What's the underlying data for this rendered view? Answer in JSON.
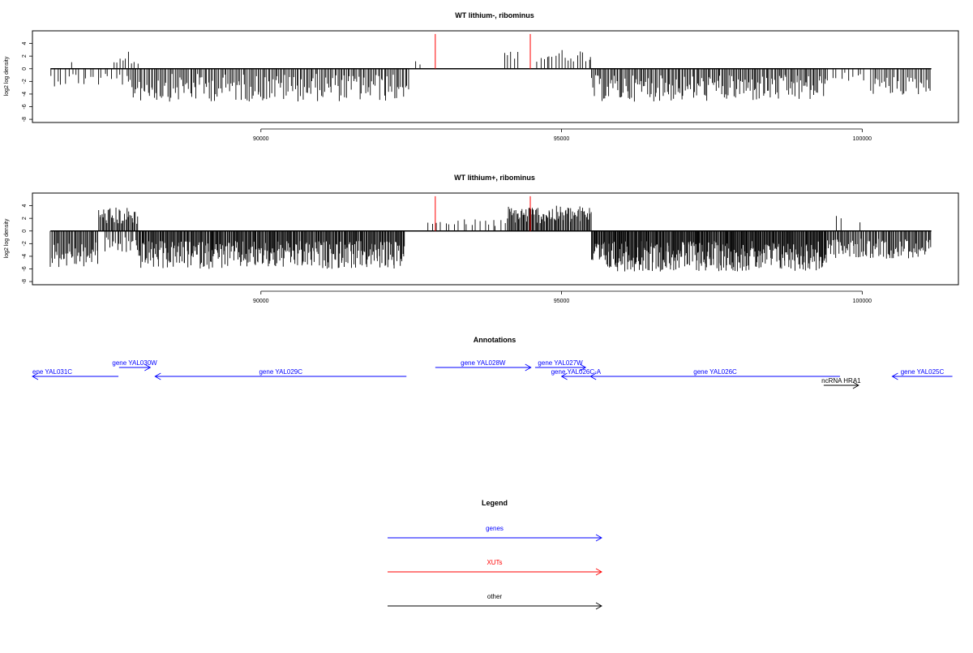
{
  "chart_data": [
    {
      "type": "bar",
      "title": "WT lithium-, ribominus",
      "ylabel": "log2 log density",
      "xlim": [
        86200,
        101600
      ],
      "ylim": [
        -8.5,
        6
      ],
      "x_ticks": [
        90000,
        95000,
        100000
      ],
      "y_ticks": [
        -8,
        -6,
        -4,
        -2,
        0,
        2,
        4
      ],
      "segments": [
        {
          "start": 86500,
          "end": 87800,
          "sign": -1,
          "mean": -1.6,
          "spread": 1.2,
          "step": 60
        },
        {
          "start": 86850,
          "end": 86900,
          "sign": 1,
          "mean": 0.9,
          "spread": 0.2,
          "step": 60
        },
        {
          "start": 87550,
          "end": 87950,
          "sign": 1,
          "mean": 1.8,
          "spread": 1.0,
          "step": 50
        },
        {
          "start": 87800,
          "end": 92450,
          "sign": -1,
          "mean": -3.0,
          "spread": 2.2,
          "step": 25
        },
        {
          "start": 92550,
          "end": 92650,
          "sign": 1,
          "mean": 0.9,
          "spread": 0.3,
          "step": 70
        },
        {
          "start": 94050,
          "end": 94300,
          "sign": 1,
          "mean": 2.2,
          "spread": 0.7,
          "step": 60
        },
        {
          "start": 94600,
          "end": 95500,
          "sign": 1,
          "mean": 2.1,
          "spread": 1.0,
          "step": 50
        },
        {
          "start": 95500,
          "end": 99400,
          "sign": -1,
          "mean": -3.1,
          "spread": 2.1,
          "step": 22
        },
        {
          "start": 99400,
          "end": 99700,
          "sign": -1,
          "mean": -1.3,
          "spread": 0.6,
          "step": 90
        },
        {
          "start": 99700,
          "end": 100100,
          "sign": -1,
          "mean": -1.4,
          "spread": 0.8,
          "step": 70
        },
        {
          "start": 100150,
          "end": 101150,
          "sign": -1,
          "mean": -2.7,
          "spread": 1.5,
          "step": 30
        }
      ],
      "xut_markers": [
        {
          "x": 92900,
          "value": 5.5
        },
        {
          "x": 94480,
          "value": 5.5
        }
      ]
    },
    {
      "type": "bar",
      "title": "WT lithium+, ribominus",
      "ylabel": "log2 log density",
      "xlim": [
        86200,
        101600
      ],
      "ylim": [
        -8.5,
        6
      ],
      "x_ticks": [
        90000,
        95000,
        100000
      ],
      "y_ticks": [
        -8,
        -6,
        -4,
        -2,
        0,
        2,
        4
      ],
      "segments": [
        {
          "start": 86500,
          "end": 87300,
          "sign": -1,
          "mean": -3.8,
          "spread": 2.0,
          "step": 18
        },
        {
          "start": 87300,
          "end": 87950,
          "sign": 1,
          "mean": 2.4,
          "spread": 1.4,
          "step": 18
        },
        {
          "start": 87400,
          "end": 87950,
          "sign": -1,
          "mean": -2.2,
          "spread": 1.4,
          "step": 30
        },
        {
          "start": 87950,
          "end": 92400,
          "sign": -1,
          "mean": -3.8,
          "spread": 2.2,
          "step": 14
        },
        {
          "start": 92800,
          "end": 94100,
          "sign": 1,
          "mean": 1.3,
          "spread": 0.6,
          "step": 70
        },
        {
          "start": 94100,
          "end": 95500,
          "sign": 1,
          "mean": 2.6,
          "spread": 1.4,
          "step": 16
        },
        {
          "start": 95500,
          "end": 99400,
          "sign": -1,
          "mean": -4.0,
          "spread": 2.4,
          "step": 12
        },
        {
          "start": 99400,
          "end": 101150,
          "sign": -1,
          "mean": -2.8,
          "spread": 1.6,
          "step": 18
        },
        {
          "start": 99580,
          "end": 99650,
          "sign": 1,
          "mean": 2.5,
          "spread": 0.5,
          "step": 50
        },
        {
          "start": 99960,
          "end": 100000,
          "sign": 1,
          "mean": 1.4,
          "spread": 0.2,
          "step": 50
        }
      ],
      "xut_markers": [
        {
          "x": 92900,
          "value": 5.5
        },
        {
          "x": 94480,
          "value": 5.5
        }
      ]
    }
  ],
  "annotations": {
    "title": "Annotations",
    "features": [
      {
        "label": "ene YAL031C",
        "start": 86200,
        "end": 87630,
        "strand": "-",
        "row": 1,
        "kind": "gene"
      },
      {
        "label": "gene YAL030W",
        "start": 87640,
        "end": 88160,
        "strand": "+",
        "row": 0,
        "kind": "gene"
      },
      {
        "label": "gene YAL029C",
        "start": 88240,
        "end": 92420,
        "strand": "-",
        "row": 1,
        "kind": "gene"
      },
      {
        "label": "gene YAL028W",
        "start": 92900,
        "end": 94490,
        "strand": "+",
        "row": 0,
        "kind": "gene"
      },
      {
        "label": "gene YAL027W",
        "start": 94560,
        "end": 95400,
        "strand": "+",
        "row": 0,
        "kind": "gene"
      },
      {
        "label": "gene YAL026C-A",
        "start": 95000,
        "end": 95480,
        "strand": "-",
        "row": 1,
        "kind": "gene"
      },
      {
        "label": "gene YAL026C",
        "start": 95480,
        "end": 99630,
        "strand": "-",
        "row": 1,
        "kind": "gene"
      },
      {
        "label": "ncRNA HRA1",
        "start": 99360,
        "end": 99940,
        "strand": "+",
        "row": 2,
        "kind": "other"
      },
      {
        "label": "gene YAL025C",
        "start": 100500,
        "end": 101500,
        "strand": "-",
        "row": 1,
        "kind": "gene"
      }
    ]
  },
  "legend": {
    "title": "Legend",
    "items": [
      {
        "label": "genes",
        "color": "#0000ff"
      },
      {
        "label": "XUTs",
        "color": "#ff0000"
      },
      {
        "label": "other",
        "color": "#000000"
      }
    ]
  },
  "colors": {
    "gene": "#0000ff",
    "xut": "#ff0000",
    "other": "#000000",
    "bars": "#000000"
  }
}
